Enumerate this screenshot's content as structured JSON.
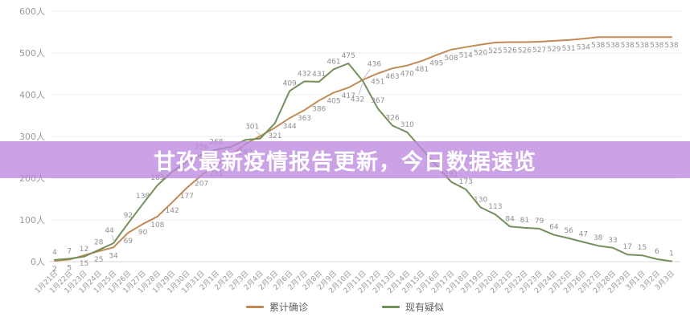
{
  "banner": {
    "title": "甘孜最新疫情报告更新，今日数据速览",
    "bg_color_rgba": "rgba(188,136,223,0.78)",
    "text_color": "#ffffff"
  },
  "chart_data": {
    "type": "line",
    "title": "",
    "xlabel": "",
    "ylabel": "",
    "ylim": [
      0,
      600
    ],
    "grid": true,
    "legend_position": "bottom",
    "y_ticks": [
      "0人",
      "100人",
      "200人",
      "300人",
      "400人",
      "500人",
      "600人"
    ],
    "x": [
      "1月21日",
      "1月22日",
      "1月23日",
      "1月24日",
      "1月25日",
      "1月26日",
      "1月27日",
      "1月28日",
      "1月29日",
      "1月30日",
      "1月31日",
      "2月1日",
      "2月2日",
      "2月3日",
      "2月4日",
      "2月5日",
      "2月6日",
      "2月7日",
      "2月8日",
      "2月9日",
      "2月10日",
      "2月11日",
      "2月12日",
      "2月13日",
      "2月14日",
      "2月15日",
      "2月16日",
      "2月17日",
      "2月18日",
      "2月19日",
      "2月20日",
      "2月21日",
      "2月22日",
      "2月23日",
      "2月24日",
      "2月25日",
      "2月26日",
      "2月27日",
      "2月28日",
      "2月29日",
      "3月1日",
      "3月2日",
      "3月3日"
    ],
    "series": [
      {
        "name": "累计确诊",
        "color": "#c18a54",
        "values": [
          2,
          5,
          15,
          25,
          34,
          69,
          90,
          108,
          142,
          177,
          207,
          231,
          254,
          282,
          301,
          321,
          344,
          363,
          386,
          405,
          417,
          436,
          451,
          463,
          470,
          481,
          495,
          508,
          514,
          520,
          525,
          526,
          526,
          527,
          529,
          531,
          534,
          538,
          538,
          538,
          538,
          538,
          538
        ],
        "label_hidden_indices": [
          12
        ]
      },
      {
        "name": "现有疑似",
        "color": "#74905a",
        "values": [
          4,
          7,
          12,
          28,
          44,
          92,
          138,
          183,
          215,
          240,
          256,
          268,
          275,
          292,
          295,
          332,
          409,
          432,
          431,
          461,
          475,
          432,
          367,
          326,
          310,
          270,
          230,
          191,
          173,
          130,
          113,
          84,
          81,
          79,
          64,
          56,
          47,
          38,
          33,
          17,
          15,
          6,
          1
        ],
        "label_hidden_indices": [
          8,
          9,
          12,
          13,
          14,
          15,
          25,
          26
        ]
      }
    ],
    "axis_text_color": "#999999",
    "data_label_color": "#8f8f8f",
    "gridline_color": "#ececec"
  }
}
